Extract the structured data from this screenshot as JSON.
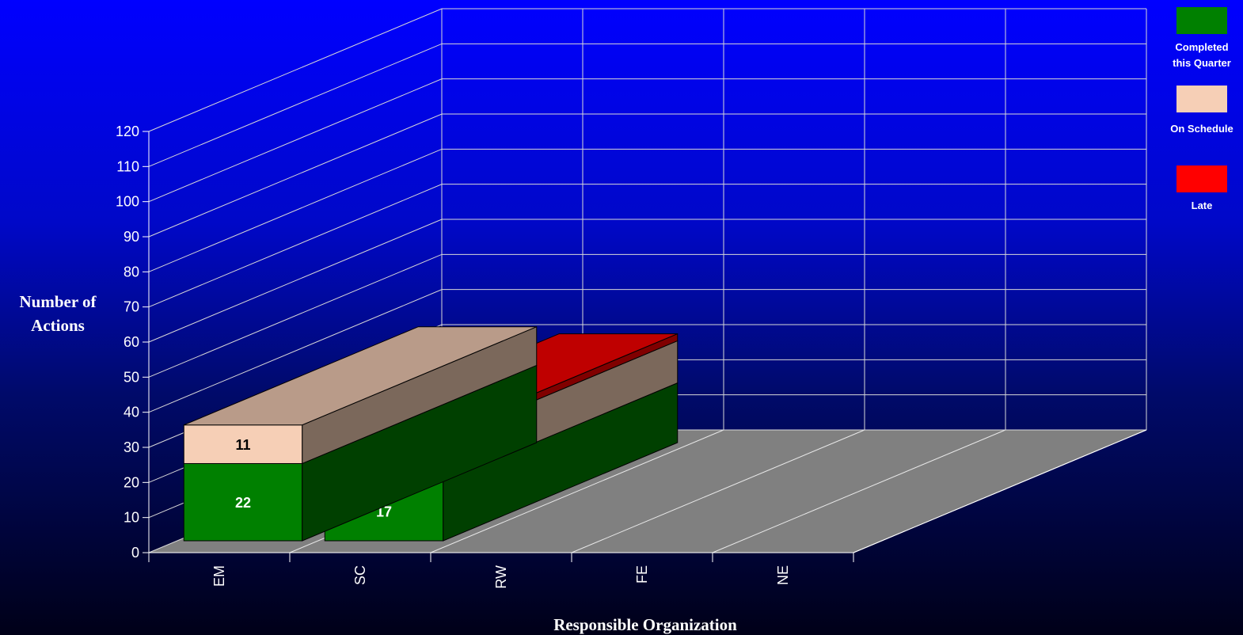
{
  "chart_data": {
    "type": "bar",
    "stacked": true,
    "three_d": true,
    "xlabel": "Responsible Organization",
    "ylabel_lines": [
      "Number of",
      "Actions"
    ],
    "ylim": [
      0,
      120
    ],
    "yticks": [
      0,
      10,
      20,
      30,
      40,
      50,
      60,
      70,
      80,
      90,
      100,
      110,
      120
    ],
    "categories": [
      "EM",
      "SC",
      "RW",
      "FE",
      "NE"
    ],
    "series": [
      {
        "name": "Completed this Quarter",
        "legend_lines": [
          "Completed",
          "this Quarter"
        ],
        "color": "#008000",
        "label_color": "#ffffff",
        "values": [
          22,
          17,
          null,
          null,
          null
        ]
      },
      {
        "name": "On Schedule",
        "legend_lines": [
          "On Schedule"
        ],
        "color": "#f6cfb6",
        "label_color": "#000000",
        "values": [
          11,
          12,
          null,
          null,
          null
        ]
      },
      {
        "name": "Late",
        "legend_lines": [
          "Late"
        ],
        "color": "#ff0000",
        "label_color": "#ffffff",
        "values": [
          null,
          2,
          null,
          null,
          null
        ]
      }
    ],
    "legend_position": "right",
    "grid": true
  }
}
